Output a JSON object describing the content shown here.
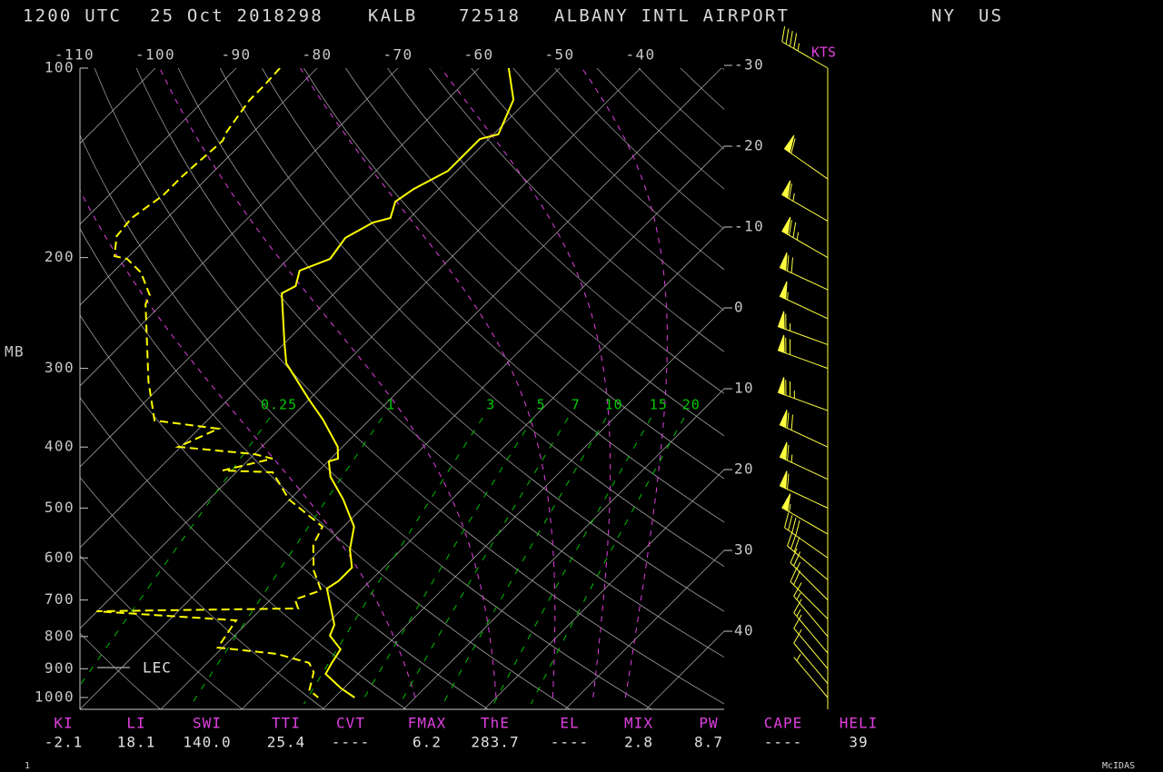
{
  "header": {
    "time": "1200 UTC",
    "date": "25 Oct 2018298",
    "station": "KALB",
    "station_id": "72518",
    "name": "ALBANY INTL AIRPORT",
    "state": "NY",
    "country": "US"
  },
  "diagram": {
    "pressure_label": "MB",
    "pressure_ticks": [
      100,
      200,
      300,
      400,
      500,
      600,
      700,
      800,
      900,
      1000
    ],
    "top_temp_ticks": [
      -110,
      -100,
      -90,
      -80,
      -70,
      -60,
      -50,
      -40
    ],
    "right_temp_ticks": [
      -30,
      -20,
      -10,
      0,
      10,
      20,
      30,
      40
    ],
    "mixing_ratio_labels": [
      0.25,
      1,
      3,
      5,
      7,
      10,
      15,
      20
    ],
    "wind_units": "KTS",
    "legend": "LEC"
  },
  "sounding": {
    "temperature": {
      "pressure": [
        100,
        112.3,
        127.4,
        129.6,
        145.6,
        155.6,
        163.0,
        173.0,
        175.9,
        186.1,
        200.9,
        209.8,
        221.9,
        228.0,
        273.6,
        294.4,
        336.2,
        361.7,
        399.7,
        417.3,
        421.5,
        445.9,
        484.6,
        535.3,
        581.8,
        621.6,
        653.4,
        671.2,
        766.4,
        797.5,
        838.3,
        881.1,
        917.1,
        967,
        1000
      ],
      "values": [
        -56.3,
        -51.8,
        -49.4,
        -51.1,
        -51.1,
        -53.1,
        -53.8,
        -52.4,
        -54.0,
        -55.5,
        -54.8,
        -57.1,
        -55.7,
        -56.5,
        -50.0,
        -47.3,
        -40.0,
        -35.8,
        -30.6,
        -29.1,
        -29.9,
        -27.8,
        -23.4,
        -18.7,
        -16.4,
        -13.9,
        -13.9,
        -14.4,
        -9.0,
        -8.2,
        -5.2,
        -4.6,
        -4.0,
        -0.3,
        2.5
      ]
    },
    "dewpoint": {
      "pressure": [
        100,
        106.9,
        112.3,
        126.2,
        130.4,
        149.0,
        159.2,
        173.0,
        184.9,
        198.9,
        200.9,
        211.2,
        229.5,
        237.2,
        314.6,
        363.0,
        374.0,
        399.7,
        410.4,
        417.3,
        435.7,
        438.6,
        484.6,
        535.3,
        572.0,
        627.9,
        675.6,
        698.4,
        721.9,
        729.2,
        753.9,
        832.9,
        852.5,
        881.1,
        911.1,
        973.6,
        1000
      ],
      "values": [
        -84.6,
        -84.4,
        -84.4,
        -83.3,
        -82.7,
        -83.3,
        -83.3,
        -84.4,
        -84.0,
        -81.8,
        -79.9,
        -76.5,
        -72.6,
        -72.0,
        -62.1,
        -56.5,
        -47.6,
        -50.3,
        -40.0,
        -37.2,
        -41.9,
        -35.5,
        -30.1,
        -22.6,
        -21.5,
        -18.3,
        -14.9,
        -17.0,
        -15.5,
        -40.1,
        -21.7,
        -20.6,
        -12.5,
        -7.4,
        -5.7,
        -4.0,
        -2.0
      ]
    },
    "wind": {
      "pressure": [
        100,
        150,
        175,
        200,
        225,
        250,
        275,
        300,
        350,
        400,
        450,
        500,
        550,
        600,
        650,
        700,
        750,
        800,
        850,
        900,
        950,
        1000
      ],
      "direction": [
        300,
        305,
        300,
        300,
        295,
        295,
        290,
        290,
        290,
        295,
        295,
        295,
        300,
        305,
        310,
        315,
        315,
        320,
        320,
        320,
        320,
        320
      ],
      "speed": [
        45,
        60,
        65,
        75,
        70,
        55,
        65,
        70,
        75,
        70,
        65,
        60,
        55,
        40,
        30,
        25,
        20,
        15,
        15,
        10,
        10,
        5
      ]
    }
  },
  "indices": [
    {
      "label": "KI",
      "value": "-2.1"
    },
    {
      "label": "LI",
      "value": "18.1"
    },
    {
      "label": "SWI",
      "value": "140.0"
    },
    {
      "label": "TTI",
      "value": "25.4"
    },
    {
      "label": "CVT",
      "value": "----"
    },
    {
      "label": "FMAX",
      "value": "6.2"
    },
    {
      "label": "ThE",
      "value": "283.7"
    },
    {
      "label": "EL",
      "value": "----"
    },
    {
      "label": "MIX",
      "value": "2.8"
    },
    {
      "label": "PW",
      "value": "8.7"
    },
    {
      "label": "CAPE",
      "value": "----"
    },
    {
      "label": "HELI",
      "value": "39"
    }
  ],
  "footer": {
    "frame": 1,
    "software": "McIDAS"
  }
}
